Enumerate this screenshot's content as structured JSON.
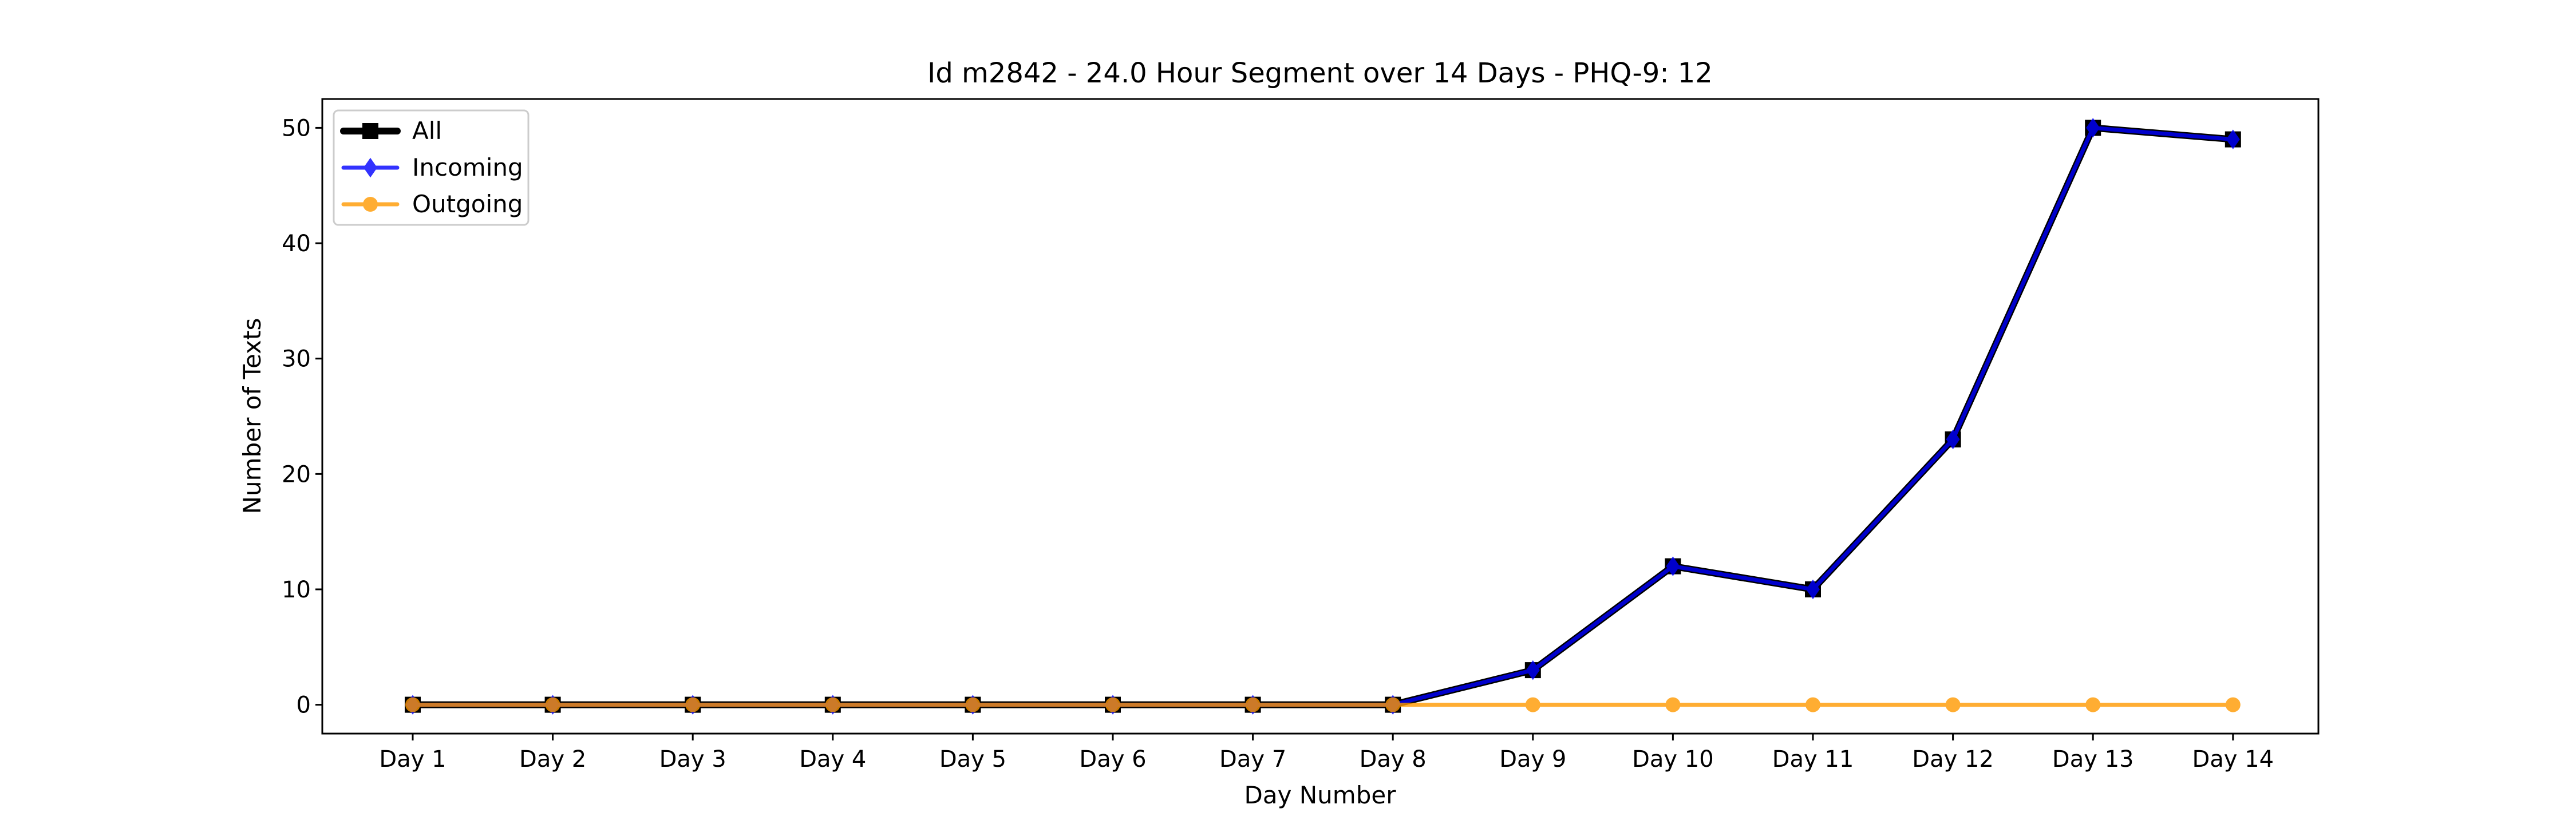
{
  "chart_data": {
    "type": "line",
    "title": "Id m2842 - 24.0 Hour Segment over 14 Days - PHQ-9: 12",
    "xlabel": "Day Number",
    "ylabel": "Number of Texts",
    "categories": [
      "Day 1",
      "Day 2",
      "Day 3",
      "Day 4",
      "Day 5",
      "Day 6",
      "Day 7",
      "Day 8",
      "Day 9",
      "Day 10",
      "Day 11",
      "Day 12",
      "Day 13",
      "Day 14"
    ],
    "ylim": [
      -2.5,
      52.5
    ],
    "yticks": [
      0,
      10,
      20,
      30,
      40,
      50
    ],
    "grid": false,
    "legend_position": "top-left",
    "series": [
      {
        "name": "All",
        "color": "#000000",
        "marker": "square",
        "values": [
          0,
          0,
          0,
          0,
          0,
          0,
          0,
          0,
          3,
          12,
          10,
          23,
          50,
          49
        ]
      },
      {
        "name": "Incoming",
        "color": "#0000ff",
        "marker": "diamond",
        "values": [
          0,
          0,
          0,
          0,
          0,
          0,
          0,
          0,
          3,
          12,
          10,
          23,
          50,
          49
        ]
      },
      {
        "name": "Outgoing",
        "color": "#ff9900",
        "marker": "circle",
        "values": [
          0,
          0,
          0,
          0,
          0,
          0,
          0,
          0,
          0,
          0,
          0,
          0,
          0,
          0
        ]
      }
    ]
  }
}
